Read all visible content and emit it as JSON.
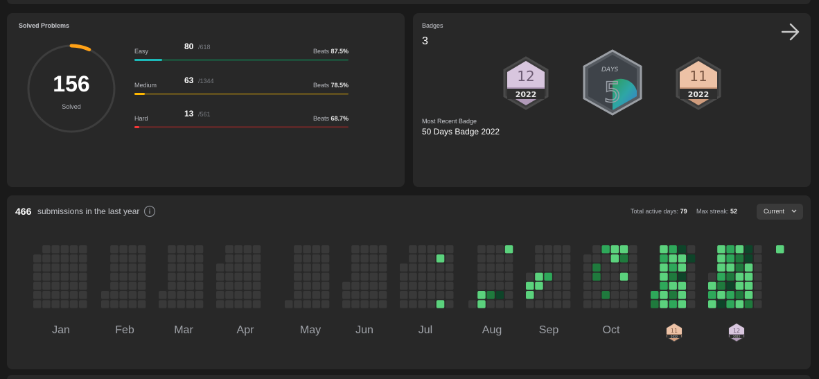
{
  "solved": {
    "title": "Solved Problems",
    "total": "156",
    "label": "Solved",
    "difficulties": [
      {
        "name": "Easy",
        "solved": "80",
        "total": "/618",
        "beats_label": "Beats",
        "beats": "87.5%",
        "color": "#1cbaba",
        "track": "#1e4e3a",
        "progress": 0.129
      },
      {
        "name": "Medium",
        "solved": "63",
        "total": "/1344",
        "beats_label": "Beats",
        "beats": "78.5%",
        "color": "#ffb700",
        "track": "#5e4e1f",
        "progress": 0.047
      },
      {
        "name": "Hard",
        "solved": "13",
        "total": "/561",
        "beats_label": "Beats",
        "beats": "68.7%",
        "color": "#f63737",
        "track": "#5a2828",
        "progress": 0.023
      }
    ]
  },
  "badges": {
    "title": "Badges",
    "count": "3",
    "recent_label": "Most Recent Badge",
    "recent": "50 Days Badge 2022",
    "items": [
      {
        "icon": "badge-12-2022-icon",
        "number": "12",
        "year": "2022"
      },
      {
        "icon": "badge-50-days-icon",
        "word": "DAYS"
      },
      {
        "icon": "badge-11-2022-icon",
        "number": "11",
        "year": "2022"
      }
    ]
  },
  "submissions": {
    "count": "466",
    "text": "submissions in the last year",
    "active_days_label": "Total active days:",
    "active_days": "79",
    "max_streak_label": "Max streak:",
    "max_streak": "52",
    "dropdown": "Current",
    "months": [
      "Jan",
      "Feb",
      "Mar",
      "Apr",
      "May",
      "Jun",
      "Jul",
      "Aug",
      "Sep",
      "Oct"
    ],
    "mini_badges": [
      {
        "icon": "mini-badge-11-icon",
        "number": "11",
        "year": "2022"
      },
      {
        "icon": "mini-badge-12-icon",
        "number": "12",
        "year": "2022"
      }
    ]
  }
}
